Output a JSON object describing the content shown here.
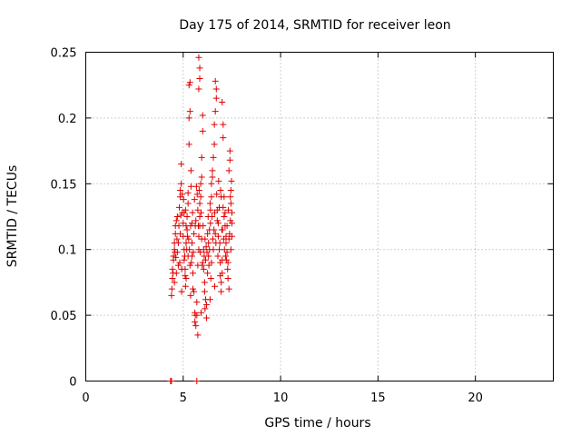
{
  "chart_data": {
    "type": "scatter",
    "title": "Day 175 of 2014, SRMTID for receiver leon",
    "xlabel": "GPS time / hours",
    "ylabel": "SRMTID / TECUs",
    "xlim": [
      0,
      24
    ],
    "ylim": [
      0,
      0.25
    ],
    "x_ticks": [
      0,
      5,
      10,
      15,
      20
    ],
    "x_tick_labels": [
      "0",
      "5",
      "10",
      "15",
      "20"
    ],
    "y_ticks": [
      0,
      0.05,
      0.1,
      0.15,
      0.2,
      0.25
    ],
    "y_tick_labels": [
      "0",
      "0.05",
      "0.1",
      "0.15",
      "0.2",
      "0.25"
    ],
    "grid": true,
    "marker": "plus",
    "color": "#e00000",
    "series": [
      {
        "name": "SRMTID",
        "points": [
          [
            4.35,
            0.0
          ],
          [
            4.4,
            0.0
          ],
          [
            5.7,
            0.0
          ],
          [
            4.4,
            0.065
          ],
          [
            4.42,
            0.07
          ],
          [
            4.45,
            0.078
          ],
          [
            4.45,
            0.085
          ],
          [
            4.5,
            0.092
          ],
          [
            4.5,
            0.095
          ],
          [
            4.55,
            0.1
          ],
          [
            4.55,
            0.105
          ],
          [
            4.6,
            0.112
          ],
          [
            4.6,
            0.118
          ],
          [
            4.65,
            0.122
          ],
          [
            4.7,
            0.125
          ],
          [
            4.7,
            0.098
          ],
          [
            4.75,
            0.088
          ],
          [
            4.8,
            0.132
          ],
          [
            4.85,
            0.14
          ],
          [
            4.85,
            0.145
          ],
          [
            4.9,
            0.15
          ],
          [
            4.9,
            0.165
          ],
          [
            4.95,
            0.128
          ],
          [
            5.0,
            0.12
          ],
          [
            5.0,
            0.11
          ],
          [
            5.05,
            0.1
          ],
          [
            5.05,
            0.092
          ],
          [
            5.1,
            0.085
          ],
          [
            5.1,
            0.08
          ],
          [
            5.15,
            0.078
          ],
          [
            5.15,
            0.105
          ],
          [
            5.2,
            0.115
          ],
          [
            5.2,
            0.125
          ],
          [
            5.25,
            0.135
          ],
          [
            5.25,
            0.143
          ],
          [
            5.3,
            0.18
          ],
          [
            5.3,
            0.2
          ],
          [
            5.35,
            0.205
          ],
          [
            5.3,
            0.225
          ],
          [
            5.35,
            0.227
          ],
          [
            5.4,
            0.16
          ],
          [
            5.4,
            0.148
          ],
          [
            5.45,
            0.12
          ],
          [
            5.45,
            0.095
          ],
          [
            5.5,
            0.082
          ],
          [
            5.5,
            0.07
          ],
          [
            5.55,
            0.068
          ],
          [
            5.6,
            0.052
          ],
          [
            5.6,
            0.045
          ],
          [
            5.65,
            0.042
          ],
          [
            5.7,
            0.05
          ],
          [
            5.7,
            0.06
          ],
          [
            5.75,
            0.035
          ],
          [
            5.75,
            0.088
          ],
          [
            5.8,
            0.1
          ],
          [
            5.8,
            0.11
          ],
          [
            5.85,
            0.125
          ],
          [
            5.85,
            0.135
          ],
          [
            5.9,
            0.14
          ],
          [
            5.9,
            0.15
          ],
          [
            5.95,
            0.155
          ],
          [
            5.95,
            0.17
          ],
          [
            6.0,
            0.19
          ],
          [
            6.0,
            0.202
          ],
          [
            5.8,
            0.222
          ],
          [
            5.85,
            0.23
          ],
          [
            5.85,
            0.238
          ],
          [
            5.8,
            0.246
          ],
          [
            6.0,
            0.09
          ],
          [
            6.05,
            0.085
          ],
          [
            6.1,
            0.075
          ],
          [
            6.1,
            0.068
          ],
          [
            6.15,
            0.062
          ],
          [
            6.2,
            0.058
          ],
          [
            6.2,
            0.048
          ],
          [
            6.25,
            0.082
          ],
          [
            6.3,
            0.095
          ],
          [
            6.3,
            0.105
          ],
          [
            6.35,
            0.115
          ],
          [
            6.4,
            0.12
          ],
          [
            6.4,
            0.13
          ],
          [
            6.45,
            0.14
          ],
          [
            6.45,
            0.15
          ],
          [
            6.5,
            0.155
          ],
          [
            6.5,
            0.16
          ],
          [
            6.55,
            0.17
          ],
          [
            6.6,
            0.18
          ],
          [
            6.6,
            0.195
          ],
          [
            6.65,
            0.205
          ],
          [
            6.7,
            0.215
          ],
          [
            6.7,
            0.222
          ],
          [
            6.65,
            0.228
          ],
          [
            6.75,
            0.13
          ],
          [
            6.8,
            0.12
          ],
          [
            6.8,
            0.11
          ],
          [
            6.85,
            0.1
          ],
          [
            6.9,
            0.09
          ],
          [
            6.9,
            0.08
          ],
          [
            6.95,
            0.075
          ],
          [
            6.95,
            0.068
          ],
          [
            7.0,
            0.082
          ],
          [
            7.0,
            0.092
          ],
          [
            7.05,
            0.185
          ],
          [
            7.05,
            0.195
          ],
          [
            7.0,
            0.212
          ],
          [
            7.1,
            0.14
          ],
          [
            7.1,
            0.125
          ],
          [
            7.15,
            0.118
          ],
          [
            7.2,
            0.11
          ],
          [
            7.2,
            0.105
          ],
          [
            7.25,
            0.098
          ],
          [
            7.3,
            0.09
          ],
          [
            7.3,
            0.078
          ],
          [
            7.35,
            0.07
          ],
          [
            7.35,
            0.16
          ],
          [
            7.4,
            0.168
          ],
          [
            7.4,
            0.175
          ],
          [
            7.45,
            0.145
          ],
          [
            7.45,
            0.135
          ],
          [
            7.5,
            0.128
          ],
          [
            7.5,
            0.12
          ],
          [
            7.5,
            0.11
          ],
          [
            4.55,
            0.075
          ],
          [
            4.65,
            0.082
          ],
          [
            4.75,
            0.105
          ],
          [
            4.85,
            0.112
          ],
          [
            4.95,
            0.142
          ],
          [
            5.05,
            0.128
          ],
          [
            5.15,
            0.118
          ],
          [
            5.25,
            0.095
          ],
          [
            5.35,
            0.088
          ],
          [
            5.45,
            0.105
          ],
          [
            5.55,
            0.112
          ],
          [
            5.65,
            0.122
          ],
          [
            5.75,
            0.13
          ],
          [
            5.85,
            0.118
          ],
          [
            5.95,
            0.108
          ],
          [
            6.05,
            0.1
          ],
          [
            6.15,
            0.092
          ],
          [
            6.25,
            0.112
          ],
          [
            6.35,
            0.1
          ],
          [
            6.45,
            0.09
          ],
          [
            6.55,
            0.1
          ],
          [
            6.65,
            0.112
          ],
          [
            6.75,
            0.122
          ],
          [
            6.85,
            0.132
          ],
          [
            6.95,
            0.14
          ],
          [
            7.05,
            0.132
          ],
          [
            7.15,
            0.128
          ],
          [
            7.25,
            0.118
          ],
          [
            7.35,
            0.108
          ],
          [
            7.45,
            0.1
          ],
          [
            4.48,
            0.082
          ],
          [
            4.62,
            0.094
          ],
          [
            4.78,
            0.118
          ],
          [
            4.88,
            0.126
          ],
          [
            5.02,
            0.138
          ],
          [
            5.12,
            0.13
          ],
          [
            5.22,
            0.11
          ],
          [
            5.32,
            0.1
          ],
          [
            5.42,
            0.09
          ],
          [
            5.52,
            0.098
          ],
          [
            5.62,
            0.118
          ],
          [
            5.72,
            0.142
          ],
          [
            5.82,
            0.145
          ],
          [
            5.92,
            0.128
          ],
          [
            6.02,
            0.118
          ],
          [
            6.12,
            0.108
          ],
          [
            6.22,
            0.098
          ],
          [
            6.32,
            0.088
          ],
          [
            6.42,
            0.078
          ],
          [
            6.52,
            0.108
          ],
          [
            6.62,
            0.128
          ],
          [
            6.72,
            0.142
          ],
          [
            6.82,
            0.152
          ],
          [
            6.92,
            0.145
          ],
          [
            7.02,
            0.115
          ],
          [
            7.12,
            0.1
          ],
          [
            7.22,
            0.092
          ],
          [
            7.32,
            0.13
          ],
          [
            7.42,
            0.14
          ],
          [
            7.48,
            0.152
          ],
          [
            4.58,
            0.098
          ],
          [
            4.68,
            0.108
          ],
          [
            4.82,
            0.09
          ],
          [
            4.92,
            0.085
          ],
          [
            5.08,
            0.095
          ],
          [
            5.18,
            0.1
          ],
          [
            5.28,
            0.108
          ],
          [
            5.38,
            0.118
          ],
          [
            5.48,
            0.128
          ],
          [
            5.58,
            0.138
          ],
          [
            5.68,
            0.148
          ],
          [
            5.78,
            0.118
          ],
          [
            5.88,
            0.098
          ],
          [
            5.98,
            0.088
          ],
          [
            6.08,
            0.095
          ],
          [
            6.18,
            0.102
          ],
          [
            6.28,
            0.125
          ],
          [
            6.38,
            0.135
          ],
          [
            6.48,
            0.125
          ],
          [
            6.58,
            0.115
          ],
          [
            6.68,
            0.105
          ],
          [
            6.78,
            0.095
          ],
          [
            6.88,
            0.105
          ],
          [
            6.98,
            0.115
          ],
          [
            7.08,
            0.108
          ],
          [
            7.18,
            0.095
          ],
          [
            7.28,
            0.085
          ],
          [
            7.38,
            0.112
          ],
          [
            7.42,
            0.122
          ],
          [
            6.62,
            0.072
          ],
          [
            6.38,
            0.062
          ],
          [
            6.12,
            0.055
          ],
          [
            5.92,
            0.052
          ],
          [
            5.62,
            0.05
          ],
          [
            5.38,
            0.065
          ],
          [
            5.12,
            0.072
          ],
          [
            4.92,
            0.068
          ]
        ]
      }
    ]
  }
}
